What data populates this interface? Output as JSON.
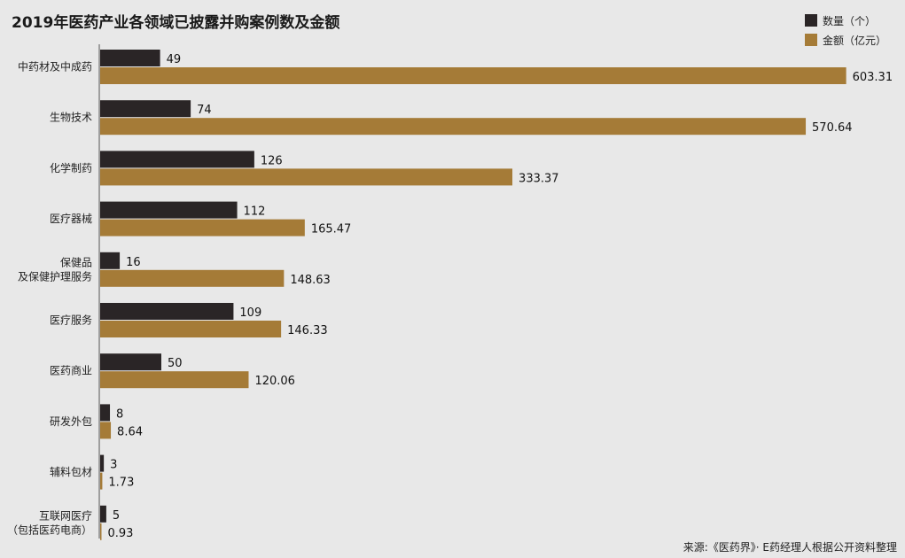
{
  "chart_data": {
    "type": "bar",
    "orientation": "horizontal",
    "title": "2019年医药产业各领域已披露并购案例数及金额",
    "legend_position": "top-right",
    "categories": [
      [
        "中药材及中成药"
      ],
      [
        "生物技术"
      ],
      [
        "化学制药"
      ],
      [
        "医疗器械"
      ],
      [
        "保健品",
        "及保健护理服务"
      ],
      [
        "医疗服务"
      ],
      [
        "医药商业"
      ],
      [
        "研发外包"
      ],
      [
        "辅料包材"
      ],
      [
        "互联网医疗",
        "（包括医药电商）"
      ]
    ],
    "series": [
      {
        "name": "数量（个）",
        "color": "#2a2526",
        "values": [
          49,
          74,
          126,
          112,
          16,
          109,
          50,
          8,
          3,
          5
        ],
        "labels": [
          "49",
          "74",
          "126",
          "112",
          "16",
          "109",
          "50",
          "8",
          "3",
          "5"
        ]
      },
      {
        "name": "金额（亿元）",
        "color": "#a57b37",
        "values": [
          603.31,
          570.64,
          333.37,
          165.47,
          148.63,
          146.33,
          120.06,
          8.64,
          1.73,
          0.93
        ],
        "labels": [
          "603.31",
          "570.64",
          "333.37",
          "165.47",
          "148.63",
          "146.33",
          "120.06",
          "8.64",
          "1.73",
          "0.93"
        ]
      }
    ],
    "source": "来源:《医药界》· E药经理人根据公开资料整理"
  }
}
